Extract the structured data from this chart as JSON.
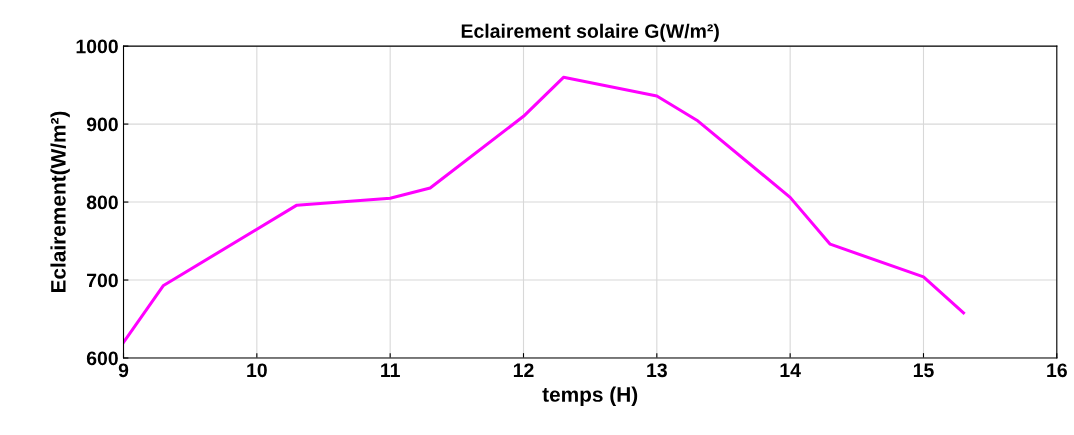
{
  "chart_data": {
    "type": "line",
    "title": "Eclairement solaire G(W/m²)",
    "xlabel": "temps (H)",
    "ylabel": "Eclairement(W/m²)",
    "x": [
      9,
      9.3,
      10.3,
      11,
      11.3,
      12,
      12.3,
      13,
      13.3,
      14,
      14.3,
      15,
      15.3
    ],
    "series": [
      {
        "color": "#ff00ff",
        "values": [
          620,
          693,
          796,
          805,
          818,
          910,
          960,
          936,
          905,
          806,
          746,
          704,
          658
        ]
      }
    ],
    "xlim": [
      9,
      16
    ],
    "xticks": [
      9,
      10,
      11,
      12,
      13,
      14,
      15,
      16
    ],
    "ylim": [
      600,
      1000
    ],
    "yticks": [
      600,
      700,
      800,
      900,
      1000
    ],
    "grid": true,
    "marker": "none",
    "line_style": "solid"
  }
}
